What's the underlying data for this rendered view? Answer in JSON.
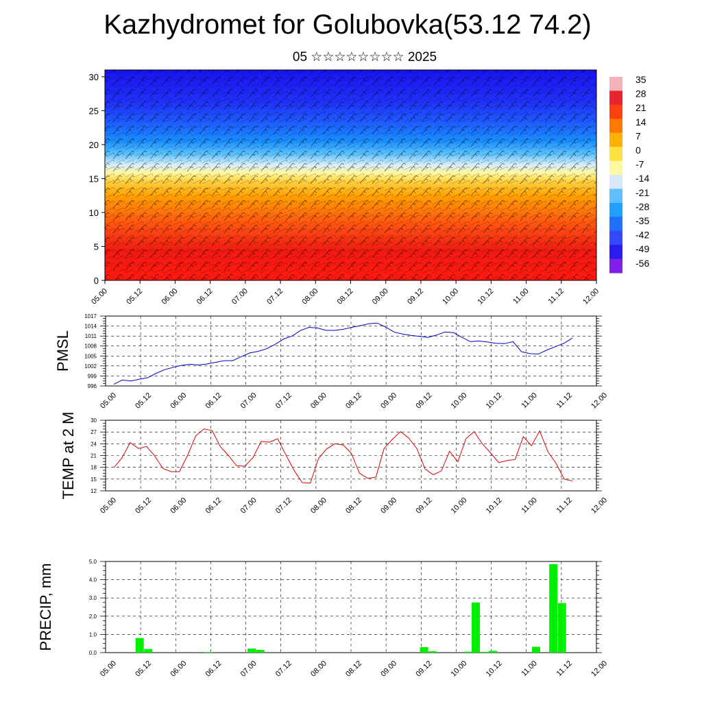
{
  "title": "Kazhydromet for Golubovka(53.12 74.2)",
  "subtitle": "05 ☆☆☆☆☆☆☆☆ 2025",
  "colors": {
    "pmsl_line": "#0000cc",
    "temp_line": "#dd0000",
    "precip_bar": "#00ee00"
  },
  "chart_data": [
    {
      "type": "heatmap",
      "xlabel": "",
      "ylabel": "",
      "x_ticks": [
        "05.00",
        "05.12",
        "06.00",
        "06.12",
        "07.00",
        "07.12",
        "08.00",
        "08.12",
        "09.00",
        "09.12",
        "10.00",
        "10.12",
        "11.00",
        "11.12",
        "12.00"
      ],
      "y_ticks": [
        0,
        5,
        10,
        15,
        20,
        25,
        30
      ],
      "ylim": [
        0,
        31
      ],
      "colorbar_labels": [
        "35",
        "28",
        "21",
        "14",
        "7",
        "0",
        "-7",
        "-14",
        "-21",
        "-28",
        "-35",
        "-42",
        "-49",
        "-56"
      ],
      "colorbar_colors": [
        "#f2b2b8",
        "#e8242c",
        "#ff4010",
        "#ff7a00",
        "#ffb000",
        "#ffe040",
        "#fff8a0",
        "#d8e8f8",
        "#60c0ff",
        "#1ea0ff",
        "#1e70ff",
        "#3448ff",
        "#2a1cf0",
        "#8020e8"
      ],
      "overlay": "wind barbs"
    },
    {
      "type": "line",
      "ylabel": "PMSL",
      "x_ticks": [
        "05.00",
        "05.12",
        "06.00",
        "06.12",
        "07.00",
        "07.12",
        "08.00",
        "08.12",
        "09.00",
        "09.12",
        "10.00",
        "10.12",
        "11.00",
        "11.12",
        "12.00"
      ],
      "y_ticks": [
        996,
        999,
        1002,
        1005,
        1008,
        1011,
        1014,
        1017
      ],
      "ylim": [
        996,
        1017
      ],
      "grid": true,
      "series": [
        {
          "values": [
            996.5,
            997.8,
            997.5,
            998.0,
            998.5,
            999.8,
            1000.9,
            1001.6,
            1002.2,
            1002.5,
            1002.3,
            1002.6,
            1003.1,
            1003.6,
            1003.6,
            1004.8,
            1005.9,
            1006.4,
            1007.2,
            1008.5,
            1010.1,
            1011.0,
            1012.7,
            1013.6,
            1013.4,
            1012.7,
            1012.7,
            1013.0,
            1013.6,
            1014.1,
            1014.7,
            1014.9,
            1013.7,
            1012.2,
            1011.6,
            1011.2,
            1010.9,
            1010.6,
            1011.3,
            1012.2,
            1012.0,
            1010.6,
            1009.3,
            1009.5,
            1009.2,
            1008.8,
            1008.7,
            1009.3,
            1006.3,
            1005.7,
            1005.6,
            1006.8,
            1007.8,
            1008.8,
            1010.4
          ]
        }
      ]
    },
    {
      "type": "line",
      "ylabel": "TEMP at 2 M",
      "x_ticks": [
        "05.00",
        "05.12",
        "06.00",
        "06.12",
        "07.00",
        "07.12",
        "08.00",
        "08.12",
        "09.00",
        "09.12",
        "10.00",
        "10.12",
        "11.00",
        "11.12",
        "12.00"
      ],
      "y_ticks": [
        12,
        15,
        18,
        21,
        24,
        27,
        30
      ],
      "ylim": [
        12,
        30
      ],
      "grid": true,
      "series": [
        {
          "values": [
            17.9,
            20.4,
            24.3,
            22.8,
            23.3,
            20.9,
            17.7,
            16.9,
            16.9,
            21.0,
            26.0,
            27.8,
            27.4,
            23.3,
            21.0,
            18.4,
            18.3,
            20.5,
            24.6,
            24.4,
            25.3,
            21.2,
            17.3,
            14.1,
            14.0,
            20.3,
            22.7,
            24.0,
            23.7,
            21.6,
            16.5,
            15.2,
            15.5,
            22.8,
            25.1,
            27.1,
            25.5,
            22.8,
            17.6,
            16.1,
            17.1,
            22.1,
            19.4,
            25.3,
            27.1,
            24.0,
            21.7,
            19.2,
            19.7,
            20.0,
            25.8,
            23.5,
            27.3,
            22.0,
            19.0,
            15.0,
            14.5
          ]
        }
      ]
    },
    {
      "type": "bar",
      "ylabel": "PRECIP, mm",
      "x_ticks": [
        "05.00",
        "05.12",
        "06.00",
        "06.12",
        "07.00",
        "07.12",
        "08.00",
        "08.12",
        "09.00",
        "09.12",
        "10.00",
        "10.12",
        "11.00",
        "11.12",
        "12.00"
      ],
      "y_ticks": [
        "0.0",
        "1.0",
        "2.0",
        "3.0",
        "4.0",
        "5.0"
      ],
      "ylim": [
        0,
        5
      ],
      "grid": true,
      "bars": [
        {
          "hour": 9,
          "value": 0.8
        },
        {
          "hour": 12,
          "value": 0.2
        },
        {
          "hour": 33,
          "value": 0.03
        },
        {
          "hour": 48,
          "value": 0.22
        },
        {
          "hour": 51,
          "value": 0.15
        },
        {
          "hour": 108,
          "value": 0.3
        },
        {
          "hour": 111,
          "value": 0.08
        },
        {
          "hour": 123,
          "value": 0.05
        },
        {
          "hour": 126,
          "value": 2.75
        },
        {
          "hour": 129,
          "value": 0.04
        },
        {
          "hour": 132,
          "value": 0.1
        },
        {
          "hour": 147,
          "value": 0.32
        },
        {
          "hour": 153,
          "value": 4.85
        },
        {
          "hour": 156,
          "value": 2.72
        }
      ]
    }
  ]
}
